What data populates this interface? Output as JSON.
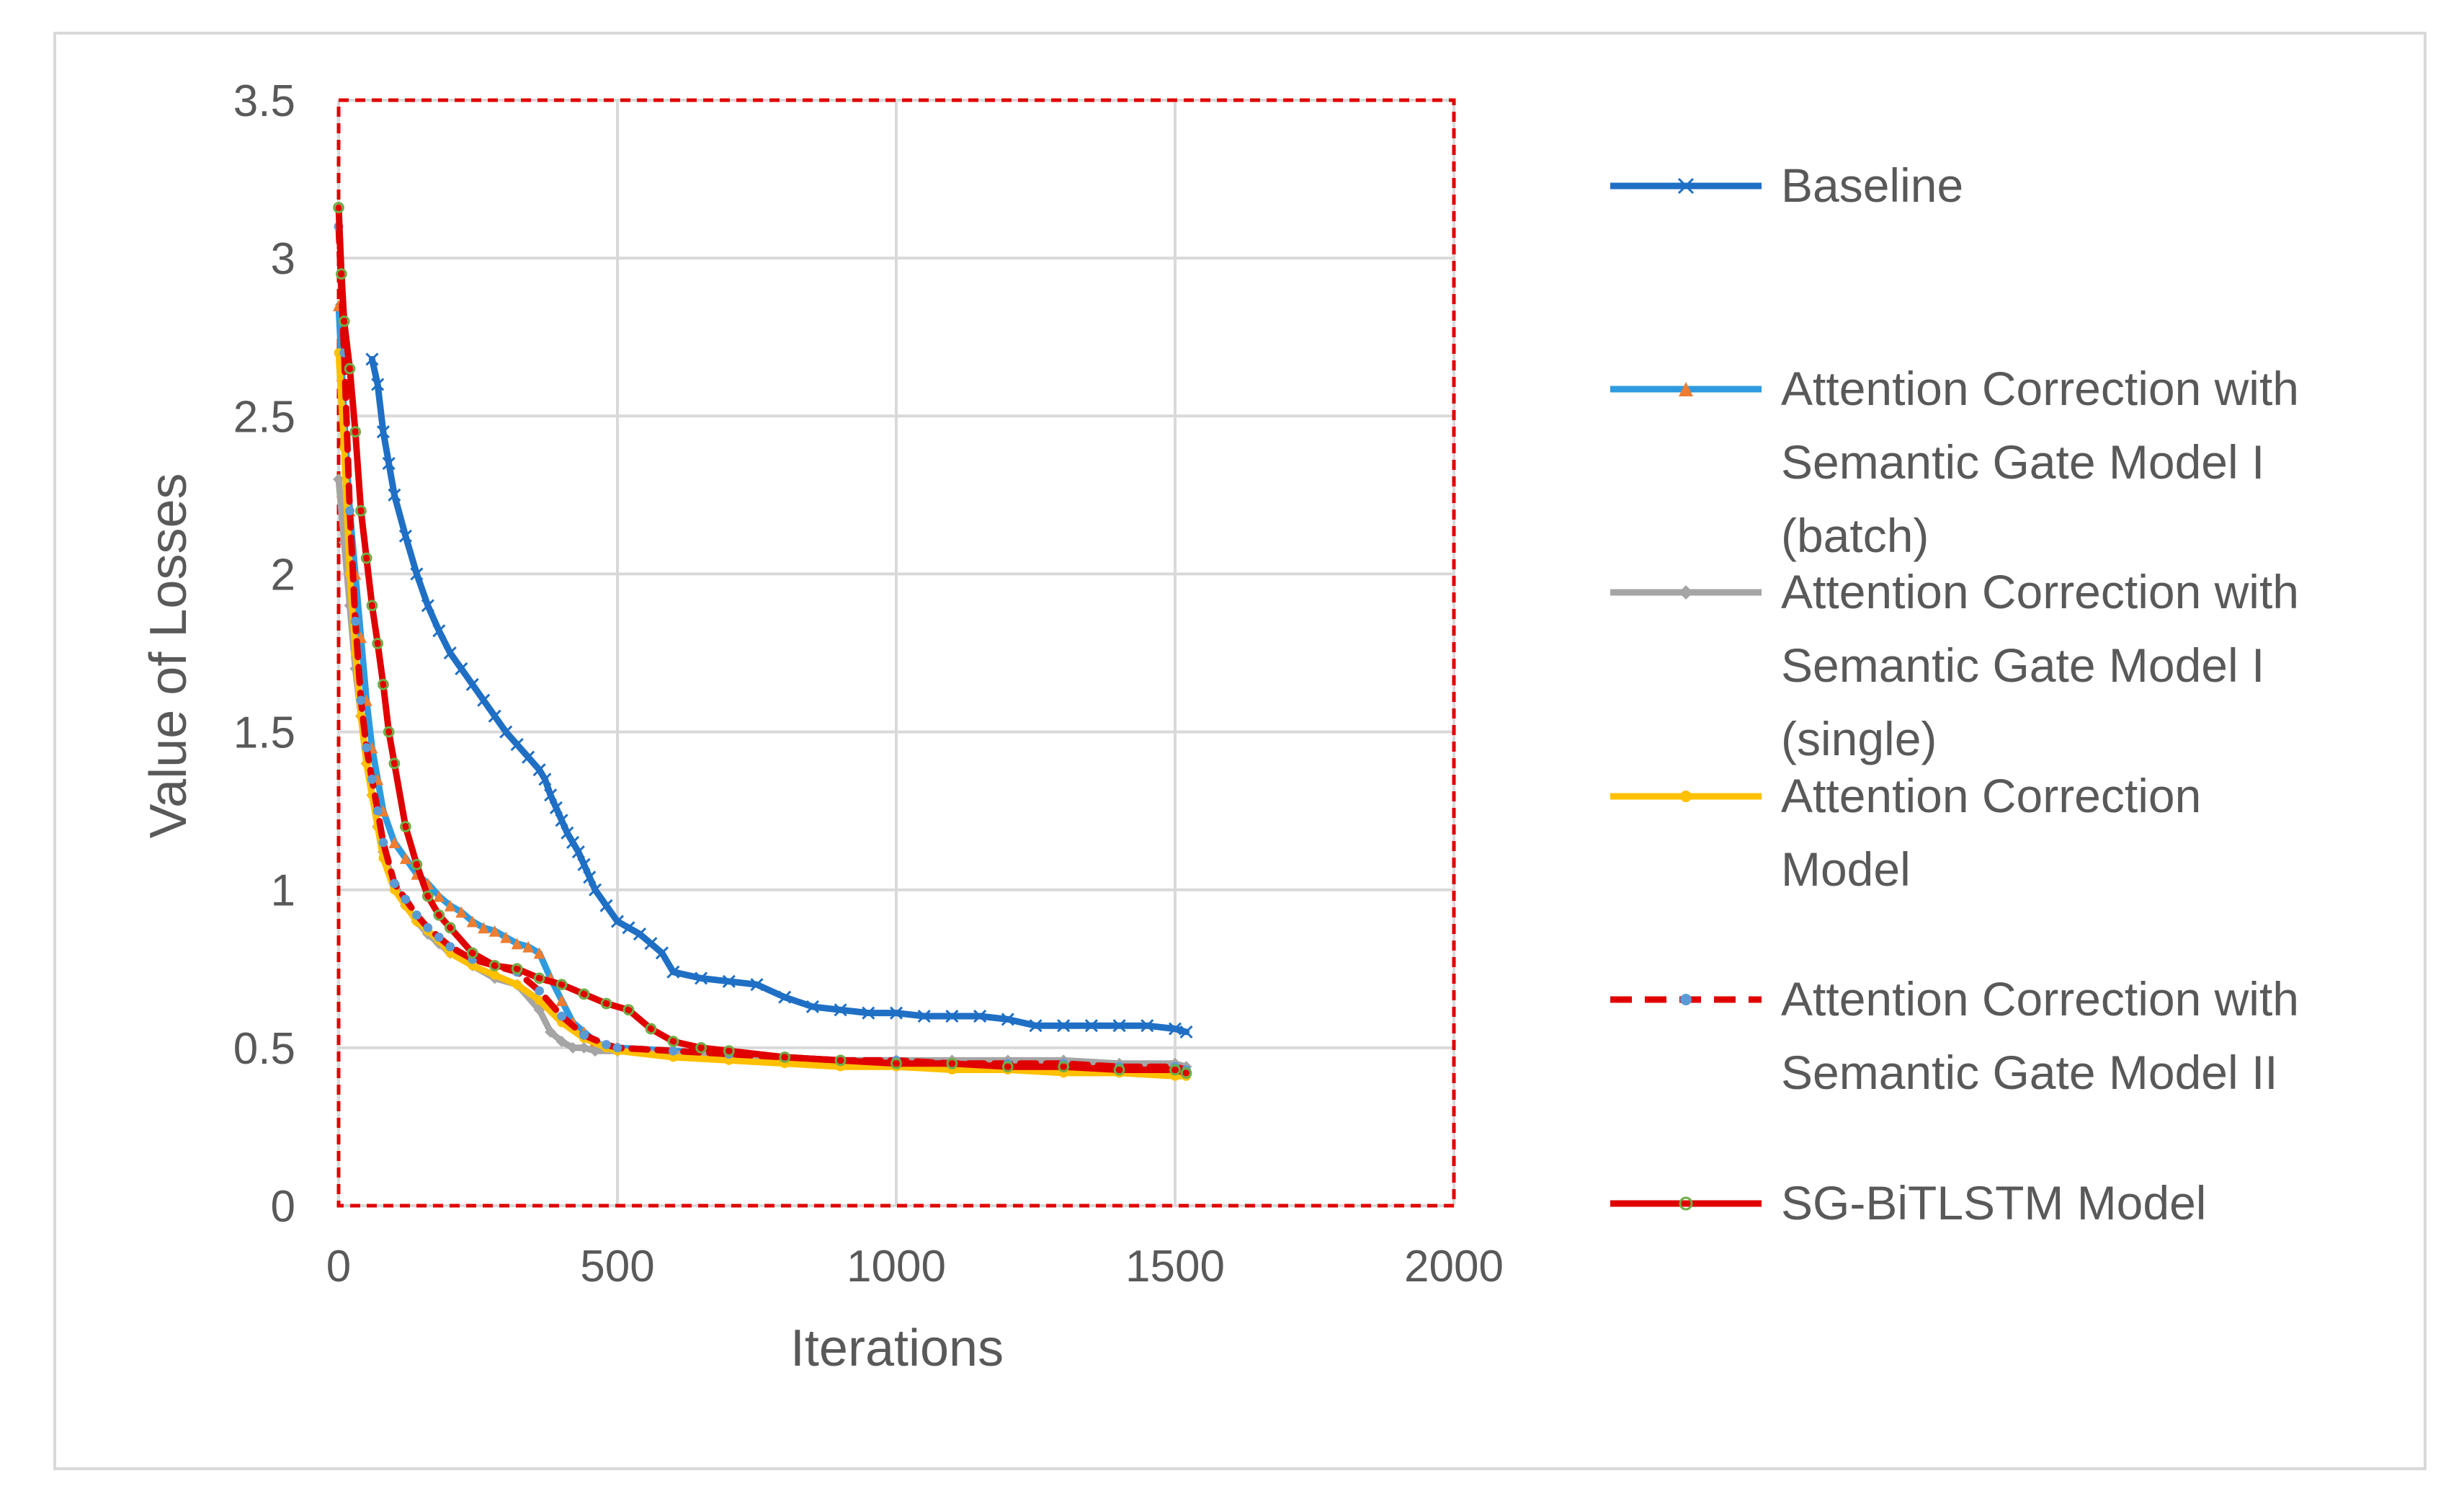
{
  "chart_data": {
    "type": "line",
    "title": "",
    "xlabel": "Iterations",
    "ylabel": "Value of Losses",
    "xlim": [
      0,
      2000
    ],
    "ylim": [
      0,
      3.5
    ],
    "xticks": [
      0,
      500,
      1000,
      1500,
      2000
    ],
    "yticks": [
      0,
      0.5,
      1,
      1.5,
      2,
      2.5,
      3,
      3.5
    ],
    "xtick_labels": [
      "0",
      "500",
      "1000",
      "1500",
      "2000"
    ],
    "ytick_labels": [
      "0",
      "0.5",
      "1",
      "1.5",
      "2",
      "2.5",
      "3",
      "3.5"
    ],
    "grid": true,
    "legend_position": "right",
    "series": [
      {
        "name": "Baseline",
        "color": "#1f6fc5",
        "dash": false,
        "marker": "x",
        "x": [
          60,
          70,
          80,
          90,
          100,
          120,
          140,
          160,
          180,
          200,
          220,
          240,
          260,
          280,
          300,
          320,
          340,
          360,
          370,
          380,
          390,
          400,
          410,
          420,
          430,
          440,
          450,
          460,
          480,
          500,
          520,
          540,
          560,
          580,
          600,
          650,
          700,
          750,
          800,
          850,
          900,
          950,
          1000,
          1050,
          1100,
          1150,
          1200,
          1250,
          1300,
          1350,
          1400,
          1450,
          1500,
          1520
        ],
        "y": [
          2.68,
          2.6,
          2.45,
          2.35,
          2.25,
          2.12,
          2.0,
          1.9,
          1.82,
          1.75,
          1.7,
          1.65,
          1.6,
          1.55,
          1.5,
          1.46,
          1.42,
          1.38,
          1.35,
          1.3,
          1.26,
          1.22,
          1.18,
          1.15,
          1.12,
          1.08,
          1.04,
          1.0,
          0.95,
          0.9,
          0.88,
          0.86,
          0.83,
          0.8,
          0.74,
          0.72,
          0.71,
          0.7,
          0.66,
          0.63,
          0.62,
          0.61,
          0.61,
          0.6,
          0.6,
          0.6,
          0.59,
          0.57,
          0.57,
          0.57,
          0.57,
          0.57,
          0.56,
          0.55
        ]
      },
      {
        "name": "Attention Correction with Semantic Gate Model I (batch)",
        "color": "#2e9be0",
        "dash": false,
        "marker": "triangle",
        "marker_color": "#ed7d31",
        "x": [
          0,
          10,
          20,
          30,
          40,
          50,
          60,
          70,
          80,
          100,
          120,
          140,
          160,
          180,
          200,
          220,
          240,
          260,
          280,
          300,
          320,
          340,
          360,
          380,
          400,
          420,
          440,
          460,
          480,
          500,
          600,
          700,
          800,
          900,
          1000,
          1100,
          1200,
          1300,
          1400,
          1500,
          1520
        ],
        "y": [
          2.85,
          2.5,
          2.2,
          2.0,
          1.8,
          1.6,
          1.45,
          1.35,
          1.25,
          1.15,
          1.1,
          1.05,
          1.02,
          0.98,
          0.95,
          0.93,
          0.9,
          0.88,
          0.87,
          0.85,
          0.83,
          0.82,
          0.8,
          0.72,
          0.65,
          0.58,
          0.55,
          0.52,
          0.5,
          0.5,
          0.49,
          0.48,
          0.47,
          0.46,
          0.46,
          0.45,
          0.45,
          0.44,
          0.44,
          0.44,
          0.43
        ]
      },
      {
        "name": "Attention Correction with Semantic Gate Model I (single)",
        "color": "#a5a5a5",
        "dash": false,
        "marker": "diamond",
        "x": [
          0,
          10,
          20,
          30,
          40,
          50,
          60,
          70,
          80,
          100,
          120,
          140,
          160,
          180,
          200,
          240,
          280,
          320,
          360,
          380,
          400,
          420,
          440,
          460,
          500,
          600,
          700,
          800,
          900,
          1000,
          1100,
          1200,
          1300,
          1400,
          1500,
          1520
        ],
        "y": [
          2.3,
          2.1,
          1.9,
          1.7,
          1.55,
          1.4,
          1.3,
          1.2,
          1.12,
          1.02,
          0.95,
          0.9,
          0.86,
          0.83,
          0.8,
          0.76,
          0.72,
          0.7,
          0.62,
          0.55,
          0.52,
          0.5,
          0.5,
          0.49,
          0.49,
          0.48,
          0.48,
          0.47,
          0.46,
          0.46,
          0.46,
          0.46,
          0.46,
          0.45,
          0.45,
          0.44
        ]
      },
      {
        "name": "Attention Correction Model",
        "color": "#ffc000",
        "dash": false,
        "marker": "circle",
        "x": [
          0,
          10,
          20,
          30,
          40,
          50,
          60,
          70,
          80,
          100,
          120,
          140,
          160,
          180,
          200,
          240,
          280,
          320,
          360,
          400,
          440,
          480,
          500,
          600,
          700,
          800,
          900,
          1000,
          1100,
          1200,
          1300,
          1400,
          1500,
          1520
        ],
        "y": [
          2.7,
          2.4,
          2.0,
          1.75,
          1.55,
          1.4,
          1.3,
          1.2,
          1.1,
          1.0,
          0.95,
          0.9,
          0.87,
          0.84,
          0.8,
          0.76,
          0.73,
          0.7,
          0.65,
          0.58,
          0.53,
          0.5,
          0.49,
          0.47,
          0.46,
          0.45,
          0.44,
          0.44,
          0.43,
          0.43,
          0.42,
          0.42,
          0.41,
          0.41
        ]
      },
      {
        "name": "Attention Correction with Semantic Gate Model II",
        "color": "#e00000",
        "dash": true,
        "marker": "circle",
        "marker_color": "#5b9bd5",
        "x": [
          0,
          10,
          20,
          30,
          40,
          50,
          60,
          70,
          80,
          100,
          120,
          140,
          160,
          180,
          200,
          240,
          280,
          320,
          360,
          400,
          440,
          480,
          500,
          600,
          700,
          800,
          900,
          1000,
          1100,
          1200,
          1300,
          1400,
          1500,
          1520
        ],
        "y": [
          3.1,
          2.7,
          2.2,
          1.85,
          1.6,
          1.45,
          1.35,
          1.25,
          1.15,
          1.02,
          0.97,
          0.92,
          0.88,
          0.85,
          0.82,
          0.78,
          0.76,
          0.74,
          0.68,
          0.6,
          0.54,
          0.51,
          0.5,
          0.49,
          0.48,
          0.47,
          0.46,
          0.46,
          0.45,
          0.45,
          0.45,
          0.44,
          0.44,
          0.43
        ]
      },
      {
        "name": "SG-BiTLSTM Model",
        "color": "#e00000",
        "dash": false,
        "marker": "circle-open",
        "marker_color": "#70ad47",
        "x": [
          0,
          5,
          10,
          20,
          30,
          40,
          50,
          60,
          70,
          80,
          90,
          100,
          120,
          140,
          160,
          180,
          200,
          240,
          280,
          320,
          360,
          400,
          440,
          480,
          520,
          560,
          600,
          650,
          700,
          800,
          900,
          1000,
          1100,
          1200,
          1300,
          1400,
          1500,
          1520
        ],
        "y": [
          3.16,
          2.95,
          2.8,
          2.65,
          2.45,
          2.2,
          2.05,
          1.9,
          1.78,
          1.65,
          1.5,
          1.4,
          1.2,
          1.08,
          0.98,
          0.92,
          0.88,
          0.8,
          0.76,
          0.75,
          0.72,
          0.7,
          0.67,
          0.64,
          0.62,
          0.56,
          0.52,
          0.5,
          0.49,
          0.47,
          0.46,
          0.45,
          0.45,
          0.44,
          0.44,
          0.43,
          0.43,
          0.42
        ]
      }
    ]
  },
  "legend": [
    {
      "lines": [
        "Baseline"
      ]
    },
    {
      "lines": [
        "Attention Correction with",
        "Semantic Gate Model I",
        "(batch)"
      ]
    },
    {
      "lines": [
        "Attention Correction with",
        "Semantic Gate Model I",
        "(single)"
      ]
    },
    {
      "lines": [
        "Attention Correction",
        "Model"
      ]
    },
    {
      "lines": [
        "Attention Correction with",
        "Semantic Gate Model II"
      ]
    },
    {
      "lines": [
        "SG-BiTLSTM Model"
      ]
    }
  ],
  "colors": {
    "grid": "#d9d9d9",
    "plot_border": "#e00000",
    "text": "#595959",
    "frame": "#d9d9d9"
  }
}
